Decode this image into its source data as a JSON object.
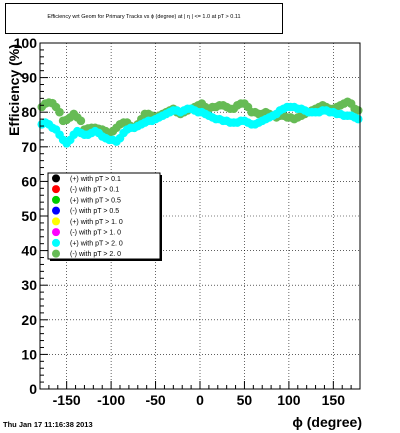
{
  "chart_data": {
    "type": "scatter",
    "title": "Efficiency wrt Geom for Primary Tracks vs ϕ (degree) at | η | <= 1.0 at pT > 0.11",
    "xlabel": "ϕ (degree)",
    "ylabel": "Efficiency (%)",
    "xlim": [
      -180,
      180
    ],
    "ylim": [
      0,
      100
    ],
    "x_ticks": [
      "-150",
      "-100",
      "-50",
      "0",
      "50",
      "100",
      "150"
    ],
    "y_ticks": [
      "0",
      "10",
      "20",
      "30",
      "40",
      "50",
      "60",
      "70",
      "80",
      "90",
      "100"
    ],
    "grid": true,
    "legend_position": "left-middle",
    "legend": [
      {
        "label": "(+) with pT > 0.1",
        "color": "#000000"
      },
      {
        "label": "(-) with pT > 0.1",
        "color": "#ff0000"
      },
      {
        "label": "(+) with pT > 0.5",
        "color": "#00cc00"
      },
      {
        "label": "(-) with pT > 0.5",
        "color": "#0000ff"
      },
      {
        "label": "(+) with pT > 1. 0",
        "color": "#ffff00"
      },
      {
        "label": "(-) with pT > 1. 0",
        "color": "#ff00ff"
      },
      {
        "label": "(+) with pT > 2. 0",
        "color": "#00ffff"
      },
      {
        "label": "(-) with pT > 2. 0",
        "color": "#66bb55"
      }
    ],
    "series": [
      {
        "color": "#66bb55",
        "x": [
          -178,
          -174,
          -170,
          -166,
          -162,
          -158,
          -154,
          -150,
          -146,
          -142,
          -138,
          -134,
          -130,
          -126,
          -122,
          -118,
          -114,
          -110,
          -106,
          -102,
          -98,
          -94,
          -90,
          -86,
          -82,
          -78,
          -74,
          -70,
          -66,
          -62,
          -58,
          -54,
          -50,
          -46,
          -42,
          -38,
          -34,
          -30,
          -26,
          -22,
          -18,
          -14,
          -10,
          -6,
          -2,
          2,
          6,
          10,
          14,
          18,
          22,
          26,
          30,
          34,
          38,
          42,
          46,
          50,
          54,
          58,
          62,
          66,
          70,
          74,
          78,
          82,
          86,
          90,
          94,
          98,
          102,
          106,
          110,
          114,
          118,
          122,
          126,
          130,
          134,
          138,
          142,
          146,
          150,
          154,
          158,
          162,
          166,
          170,
          174,
          178
        ],
        "y": [
          81.5,
          82.5,
          82.8,
          82.6,
          81.5,
          80.0,
          77.5,
          77.8,
          78.5,
          79.5,
          78.5,
          77.5,
          75.0,
          75.3,
          75.5,
          75.5,
          75.2,
          75.0,
          74.5,
          74.0,
          74.5,
          75.5,
          76.5,
          77.0,
          77.0,
          76.0,
          75.5,
          76.5,
          78.0,
          79.5,
          79.5,
          79.0,
          78.5,
          79.0,
          79.5,
          80.0,
          80.5,
          81.0,
          80.0,
          79.5,
          80.0,
          80.5,
          81.0,
          81.5,
          82.0,
          82.5,
          81.5,
          81.0,
          81.5,
          81.5,
          82.0,
          82.0,
          81.5,
          81.0,
          81.0,
          82.0,
          82.5,
          82.5,
          81.5,
          80.0,
          80.0,
          79.5,
          79.5,
          80.0,
          79.5,
          79.0,
          78.5,
          79.0,
          79.0,
          78.5,
          78.5,
          78.0,
          78.5,
          79.0,
          79.5,
          80.0,
          80.5,
          81.0,
          81.5,
          82.0,
          81.5,
          81.0,
          81.0,
          81.5,
          82.0,
          82.5,
          83.0,
          82.5,
          81.0,
          80.5
        ]
      },
      {
        "color": "#00ffff",
        "x": [
          -178,
          -174,
          -170,
          -166,
          -162,
          -158,
          -154,
          -150,
          -146,
          -142,
          -138,
          -134,
          -130,
          -126,
          -122,
          -118,
          -114,
          -110,
          -106,
          -102,
          -98,
          -94,
          -90,
          -86,
          -82,
          -78,
          -74,
          -70,
          -66,
          -62,
          -58,
          -54,
          -50,
          -46,
          -42,
          -38,
          -34,
          -30,
          -26,
          -22,
          -18,
          -14,
          -10,
          -6,
          -2,
          2,
          6,
          10,
          14,
          18,
          22,
          26,
          30,
          34,
          38,
          42,
          46,
          50,
          54,
          58,
          62,
          66,
          70,
          74,
          78,
          82,
          86,
          90,
          94,
          98,
          102,
          106,
          110,
          114,
          118,
          122,
          126,
          130,
          134,
          138,
          142,
          146,
          150,
          154,
          158,
          162,
          166,
          170,
          174,
          178
        ],
        "y": [
          76.5,
          77.0,
          76.5,
          75.5,
          75.0,
          73.5,
          72.0,
          71.0,
          72.0,
          73.5,
          74.5,
          74.0,
          73.5,
          73.5,
          74.0,
          74.5,
          74.0,
          73.0,
          72.5,
          72.0,
          72.0,
          71.5,
          72.5,
          74.0,
          75.0,
          75.5,
          75.5,
          76.0,
          76.5,
          77.0,
          77.5,
          77.5,
          78.0,
          78.5,
          79.0,
          79.5,
          80.0,
          80.5,
          80.5,
          80.0,
          80.5,
          81.0,
          81.0,
          80.5,
          80.0,
          80.0,
          79.5,
          79.0,
          78.5,
          78.0,
          78.0,
          77.5,
          77.5,
          77.0,
          77.0,
          77.0,
          77.5,
          77.5,
          77.0,
          76.5,
          76.5,
          77.0,
          77.5,
          78.0,
          78.5,
          79.0,
          79.5,
          80.5,
          81.0,
          81.5,
          81.5,
          81.5,
          81.0,
          81.0,
          80.5,
          80.0,
          80.0,
          80.0,
          80.0,
          80.5,
          80.5,
          80.0,
          80.0,
          79.5,
          79.5,
          79.0,
          79.0,
          79.0,
          78.5,
          78.0
        ]
      }
    ]
  },
  "footer": {
    "timestamp": "Thu Jan 17 11:16:38 2013"
  }
}
